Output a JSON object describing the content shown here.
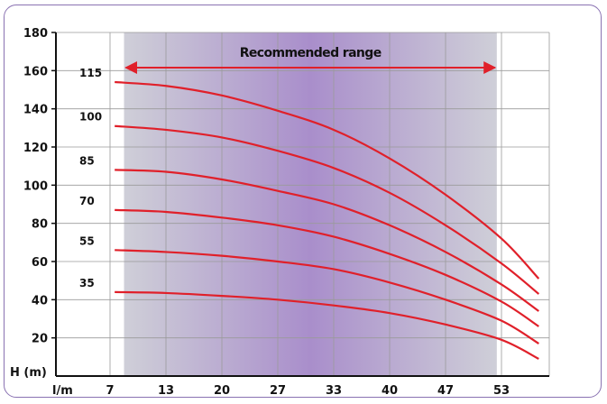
{
  "chart_data": {
    "type": "line",
    "title": "",
    "ylabel": "H (m)",
    "xlabel": "l/m",
    "ylim": [
      0,
      180
    ],
    "y_ticks": [
      "180",
      "160",
      "140",
      "120",
      "100",
      "80",
      "60",
      "40",
      "20"
    ],
    "x_ticks": [
      "7",
      "13",
      "20",
      "27",
      "33",
      "40",
      "47",
      "53"
    ],
    "grid": true,
    "annotation": {
      "text": "Recommended range",
      "x_from": 8.5,
      "x_to": 52.5
    },
    "series": [
      {
        "name": "115",
        "x": [
          7.5,
          13,
          20,
          27,
          33,
          40,
          47,
          53,
          57
        ],
        "y": [
          154,
          152,
          147,
          139,
          129,
          114,
          95,
          72,
          51
        ]
      },
      {
        "name": "100",
        "x": [
          7.5,
          13,
          20,
          27,
          33,
          40,
          47,
          53,
          57
        ],
        "y": [
          131,
          129,
          125,
          118,
          109,
          96,
          79,
          59,
          43
        ]
      },
      {
        "name": "85",
        "x": [
          7.5,
          13,
          20,
          27,
          33,
          40,
          47,
          53,
          57
        ],
        "y": [
          108,
          107,
          103,
          97,
          90,
          79,
          65,
          48,
          34
        ]
      },
      {
        "name": "70",
        "x": [
          7.5,
          13,
          20,
          27,
          33,
          40,
          47,
          53,
          57
        ],
        "y": [
          87,
          86,
          83,
          79,
          73,
          64,
          53,
          39,
          26
        ]
      },
      {
        "name": "55",
        "x": [
          7.5,
          13,
          20,
          27,
          33,
          40,
          47,
          53,
          57
        ],
        "y": [
          66,
          65,
          63,
          60,
          56,
          49,
          40,
          29,
          17
        ]
      },
      {
        "name": "35",
        "x": [
          7.5,
          13,
          20,
          27,
          33,
          40,
          47,
          53,
          57
        ],
        "y": [
          44,
          43.5,
          42,
          40,
          37,
          33,
          27,
          19,
          9
        ]
      }
    ],
    "colors": {
      "curve": "#e0202a",
      "range_arrow": "#e0202a",
      "band_edge": "#cfcfd8",
      "band_center": "#a98ecb",
      "grid": "#9a9a9a",
      "frame": "#8a72b2"
    }
  }
}
